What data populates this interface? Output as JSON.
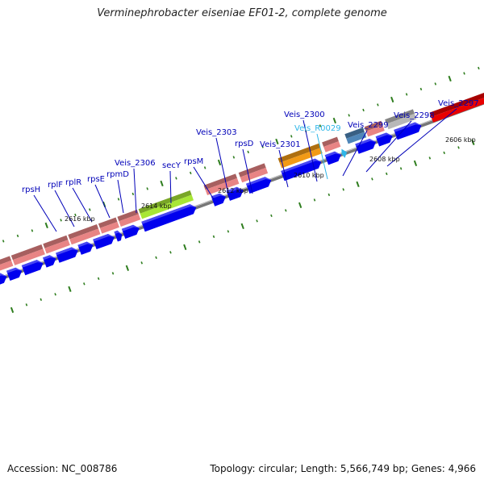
{
  "title": "Verminephrobacter eiseniae EF01-2, complete genome",
  "footer": {
    "accession": "Accession: NC_008786",
    "topology": "Topology: circular; Length: 5,566,749 bp; Genes: 4,966"
  },
  "colors": {
    "gene_label": "#0000b8",
    "rna_label": "#2fb6e8",
    "cds": "#0000ee",
    "tick": "#2e7d1e",
    "backbone": "#777777",
    "feature_pink": "#e88484",
    "feature_orange": "#f29a16",
    "feature_green": "#a8e636",
    "feature_blue": "#4f86b8",
    "feature_gray": "#b8b8b8",
    "feature_red": "#e80000"
  },
  "kbp_labels": [
    "2616 kbp",
    "2614 kbp",
    "2612 kbp",
    "2610 kbp",
    "2608 kbp",
    "2606 kbp"
  ],
  "gene_labels": [
    {
      "text": "rpsH",
      "type": "gene"
    },
    {
      "text": "rplF",
      "type": "gene"
    },
    {
      "text": "rplR",
      "type": "gene"
    },
    {
      "text": "rpsE",
      "type": "gene"
    },
    {
      "text": "rpmD",
      "type": "gene"
    },
    {
      "text": "Veis_2306",
      "type": "gene"
    },
    {
      "text": "secY",
      "type": "gene"
    },
    {
      "text": "rpsM",
      "type": "gene"
    },
    {
      "text": "Veis_2303",
      "type": "gene"
    },
    {
      "text": "rpsD",
      "type": "gene"
    },
    {
      "text": "Veis_2301",
      "type": "gene"
    },
    {
      "text": "Veis_2300",
      "type": "gene"
    },
    {
      "text": "Veis_R0029",
      "type": "rna"
    },
    {
      "text": "Veis_2299",
      "type": "gene"
    },
    {
      "text": "Veis_2298",
      "type": "gene"
    },
    {
      "text": "Veis_2297",
      "type": "gene"
    }
  ]
}
